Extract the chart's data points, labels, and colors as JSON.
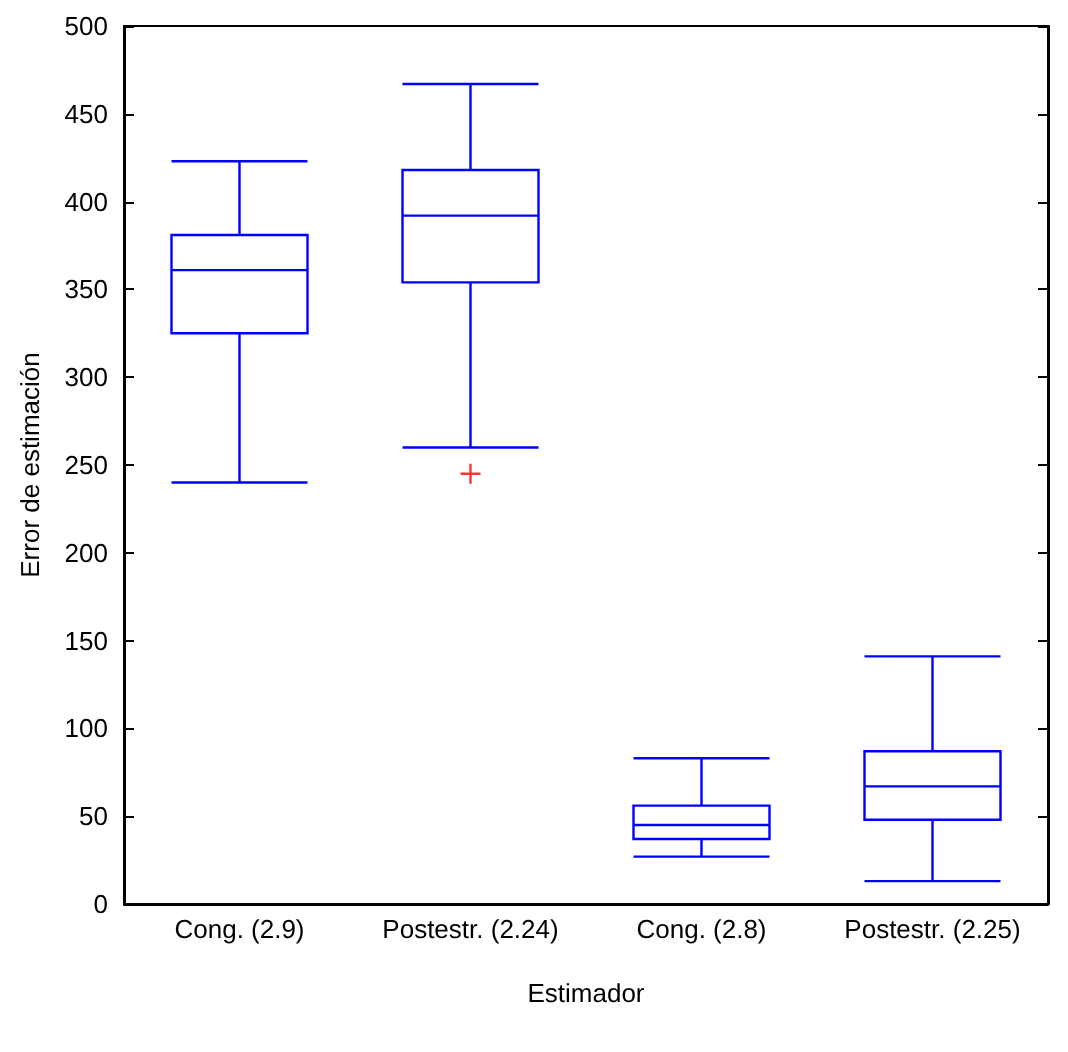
{
  "chart_data": {
    "type": "box",
    "xlabel": "Estimador",
    "ylabel": "Error de estimación",
    "categories": [
      "Cong. (2.9)",
      "Postestr. (2.24)",
      "Cong. (2.8)",
      "Postestr. (2.25)"
    ],
    "series": [
      {
        "color": "#0000ff",
        "boxes": [
          {
            "low": 240,
            "q1": 325,
            "median": 361,
            "q3": 381,
            "high": 423
          },
          {
            "low": 260,
            "q1": 354,
            "median": 392,
            "q3": 418,
            "high": 467,
            "outliers": [
              245
            ]
          },
          {
            "low": 27,
            "q1": 37,
            "median": 45,
            "q3": 56,
            "high": 83
          },
          {
            "low": 13,
            "q1": 48,
            "median": 67,
            "q3": 87,
            "high": 141
          }
        ]
      }
    ],
    "ylim": [
      0,
      500
    ],
    "yticks": [
      0,
      50,
      100,
      150,
      200,
      250,
      300,
      350,
      400,
      450,
      500
    ],
    "grid": false
  }
}
